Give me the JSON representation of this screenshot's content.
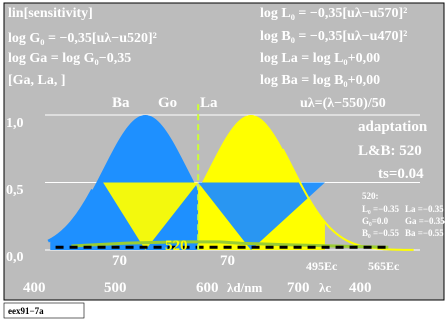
{
  "colors": {
    "plot_background": "#bcbcbc",
    "page_background": "#ffffff",
    "blue_curve": "#1e90ff",
    "yellow_curve": "#ffff00",
    "green_marker": "#9acd32",
    "text_red": "#e00000",
    "text_blue": "#1e90ff",
    "text_green": "#33cc33",
    "text_yellow": "#ffff00",
    "text_white": "#ffffff"
  },
  "header_left": {
    "l1": "lin[sensitivity]",
    "l2": "log G₀ = −0,35[uλ−u520]²",
    "l3": "log Ga = log G₀−0,35",
    "l4": "[Ga, La, ]"
  },
  "header_right": {
    "r1": "log L₀ = −0,35[uλ−u570]²",
    "r2": "log B₀ = −0,35[uλ−u470]²",
    "r3": "log La = log L₀+0,00",
    "r4": "log Ba = log B₀+0,00",
    "r5": "uλ=(λ−550)/50"
  },
  "panel": {
    "p1": "adaptation",
    "p2": "L&B: 520",
    "p3": "ts=0.04",
    "p4": "520:",
    "p5a": "L₀ =−0.35",
    "p5b": "La =−0.35",
    "p6a": "G₀=0.0",
    "p6b": "Ga =−0.35",
    "p7a": "B₀ =−0.55",
    "p7b": "Ba =−0.55"
  },
  "top_labels": {
    "ba": "Ba",
    "go": "Go",
    "la": "La"
  },
  "inner_labels": {
    "x520": "520",
    "x70a": "70",
    "x70b": "70",
    "ec495": "495Ec",
    "ec565": "565Ec"
  },
  "x_axis": {
    "t400": "400",
    "t500": "500",
    "t600": "600",
    "unit_d": "λd/nm",
    "t700": "700",
    "unit_c": "λc",
    "t400b": "400"
  },
  "y_axis": {
    "t0": "0,0",
    "t05": "0,5",
    "t10": "1,0"
  },
  "footer": "eex91−7a",
  "chart_data": {
    "type": "area",
    "x_axis_unit": "λd/nm",
    "xlim": [
      375,
      730
    ],
    "ylim": [
      0,
      1
    ],
    "formulas": {
      "blue_center_nm": 470,
      "green_center_nm": 520,
      "yellow_center_nm": 570,
      "coefficient": -0.35,
      "u_lambda": "(λ−550)/50"
    },
    "series": [
      {
        "name": "Ba",
        "color": "#1e90ff",
        "x": [
          380,
          400,
          420,
          440,
          460,
          470,
          480,
          500,
          520,
          540
        ],
        "values": [
          0.3,
          0.55,
          0.77,
          0.94,
          1.0,
          1.0,
          0.95,
          0.74,
          0.5,
          0.26
        ]
      },
      {
        "name": "La",
        "color": "#ffff00",
        "x": [
          520,
          540,
          560,
          570,
          580,
          600,
          620,
          640,
          660,
          680,
          700,
          720
        ],
        "values": [
          0.5,
          0.77,
          0.95,
          1.0,
          0.97,
          0.83,
          0.62,
          0.42,
          0.25,
          0.14,
          0.07,
          0.04
        ]
      },
      {
        "name": "Ga",
        "color": "#9acd32",
        "x": [
          400,
          450,
          500,
          520,
          540,
          560,
          600,
          650,
          700
        ],
        "values": [
          0.03,
          0.05,
          0.06,
          0.06,
          0.06,
          0.05,
          0.04,
          0.03,
          0.02
        ]
      }
    ],
    "markers": {
      "green_dashed_line_nm": 520
    }
  }
}
